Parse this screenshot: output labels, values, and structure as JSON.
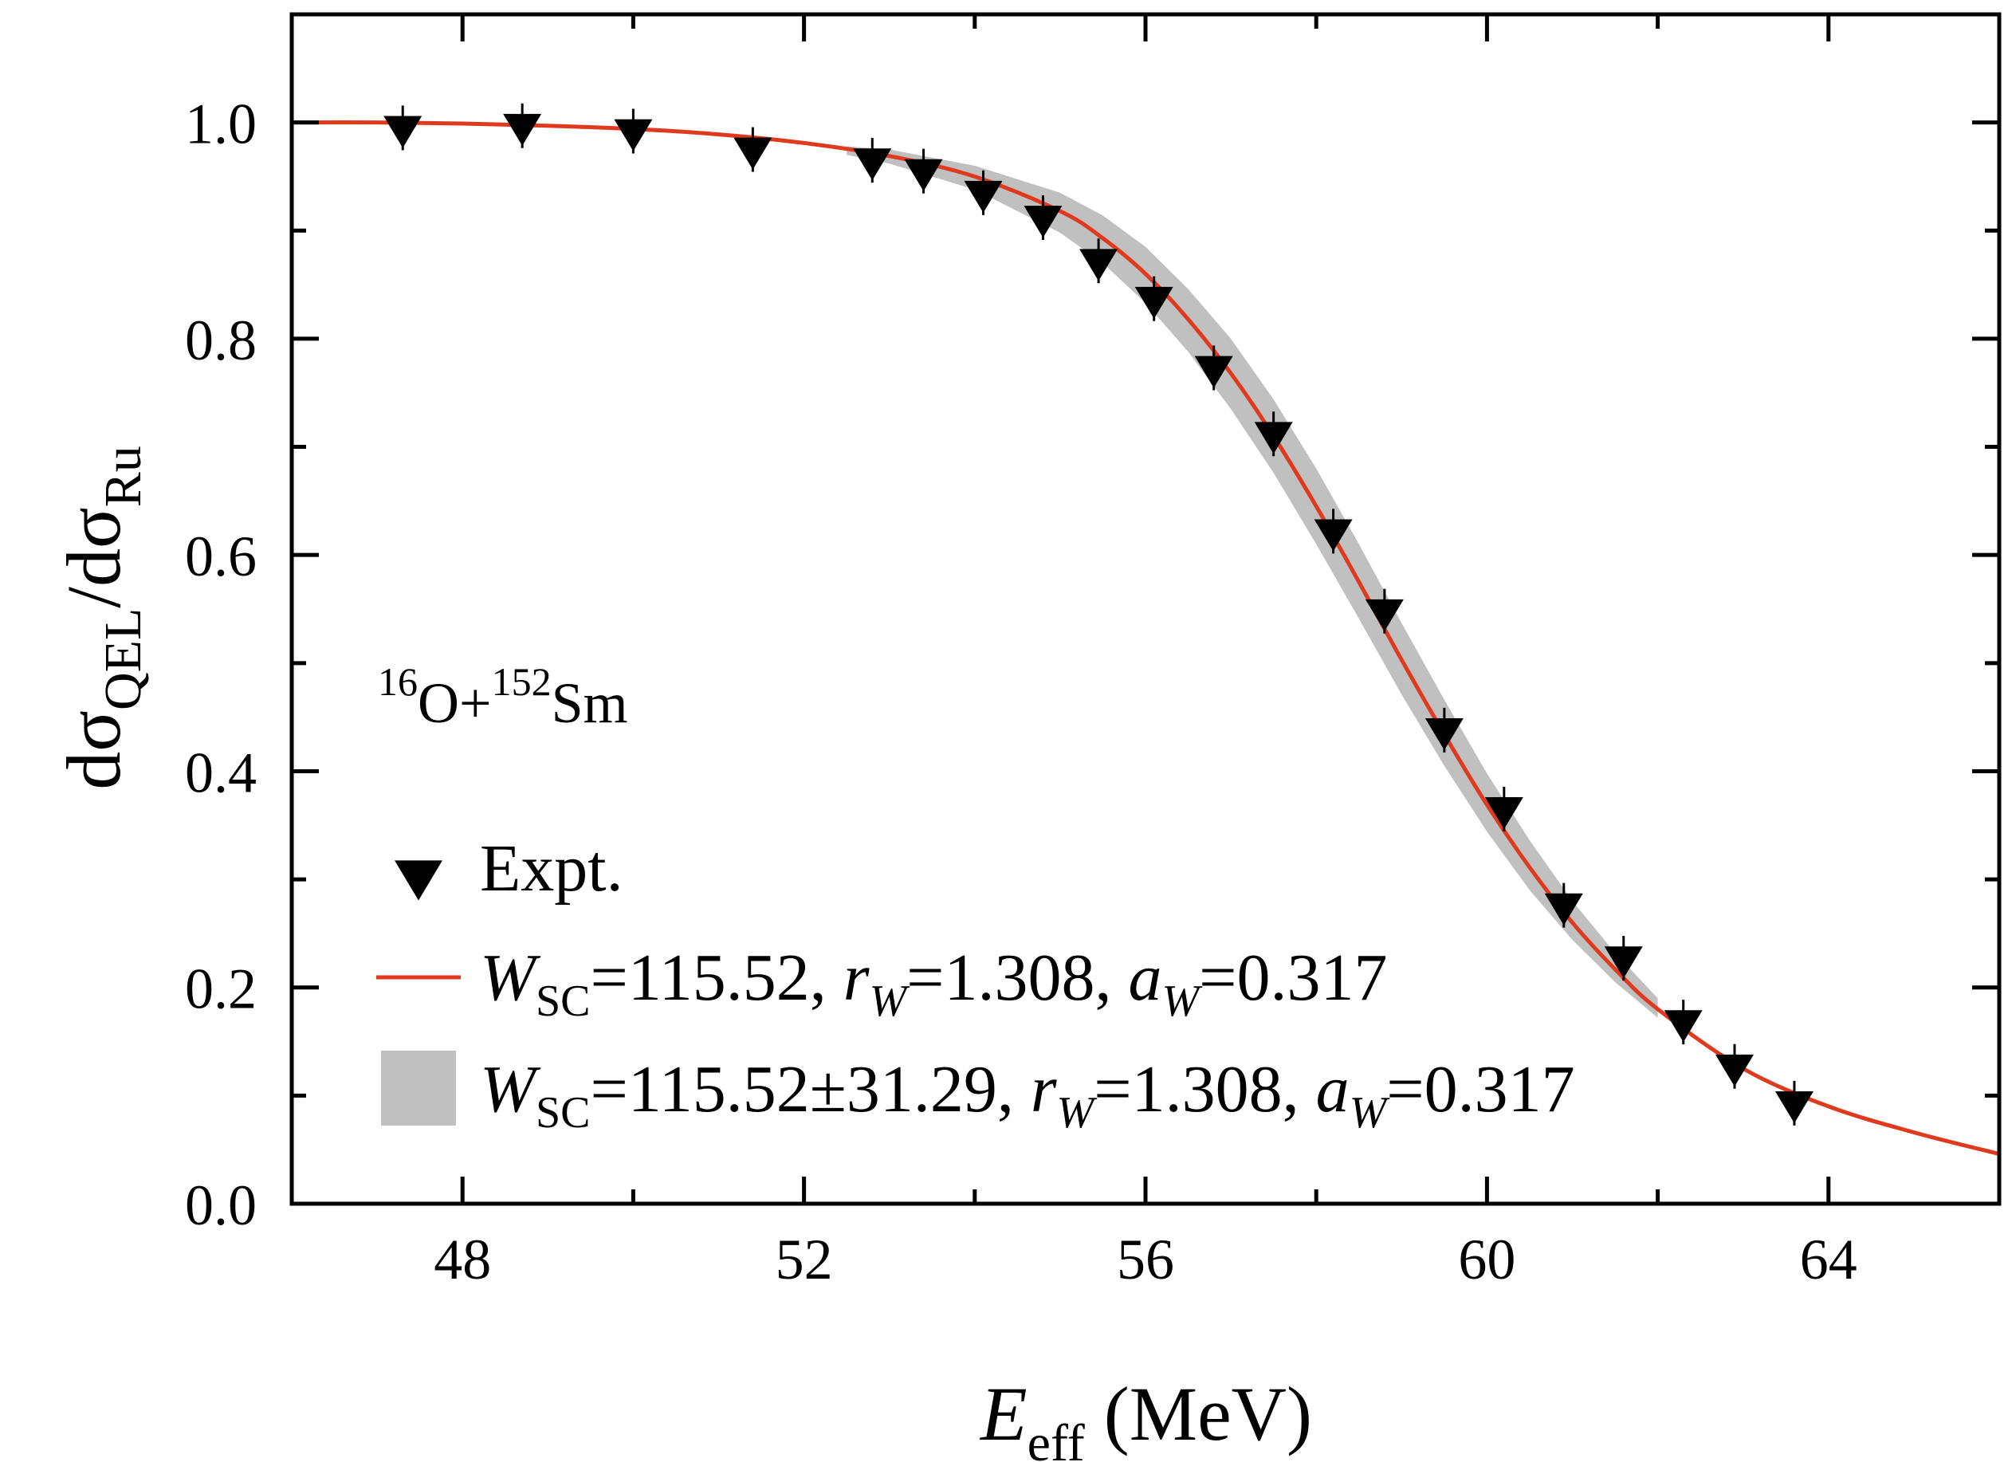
{
  "chart_data": {
    "type": "line",
    "title": "",
    "annotation": {
      "proj_mass": "16",
      "proj_sym": "O+",
      "targ_mass": "152",
      "targ_sym": "Sm"
    },
    "xlabel": {
      "main": "E",
      "sub": "eff",
      "unit": " (MeV)"
    },
    "ylabel": {
      "p1": "dσ",
      "s1": "QEL",
      "p2": "/dσ",
      "s2": "Ru"
    },
    "xlim": [
      46,
      66
    ],
    "ylim": [
      0.0,
      1.1
    ],
    "xticks": [
      48,
      52,
      56,
      60,
      64
    ],
    "xtick_labels": [
      "48",
      "52",
      "56",
      "60",
      "64"
    ],
    "yticks": [
      0.0,
      0.2,
      0.4,
      0.6,
      0.8,
      1.0
    ],
    "ytick_labels": [
      "0.0",
      "0.2",
      "0.4",
      "0.6",
      "0.8",
      "1.0"
    ],
    "colors": {
      "fit_line": "#e03a1e",
      "band": "#c0c0c0",
      "markers": "#000000",
      "axes": "#000000"
    },
    "legend": {
      "position": "bottom-left",
      "expt_label": "Expt.",
      "fit": {
        "W": "W",
        "Wsub": "SC",
        "Wval": "=115.52, ",
        "r": "r",
        "rsub": "W",
        "rval": "=1.308, ",
        "a": "a",
        "asub": "W",
        "aval": "=0.317"
      },
      "band": {
        "W": "W",
        "Wsub": "SC",
        "Wval": "=115.52±31.29, ",
        "r": "r",
        "rsub": "W",
        "rval": "=1.308, ",
        "a": "a",
        "asub": "W",
        "aval": "=0.317"
      }
    },
    "series": [
      {
        "name": "Expt.",
        "kind": "scatter",
        "marker": "triangle-down",
        "x": [
          47.3,
          48.7,
          50.0,
          51.4,
          52.8,
          53.4,
          54.1,
          54.8,
          55.45,
          56.1,
          56.8,
          57.5,
          58.2,
          58.8,
          59.5,
          60.2,
          60.9,
          61.6,
          62.3,
          62.9,
          63.6
        ],
        "y": [
          0.995,
          0.997,
          0.992,
          0.975,
          0.965,
          0.955,
          0.935,
          0.912,
          0.872,
          0.837,
          0.773,
          0.712,
          0.622,
          0.548,
          0.438,
          0.365,
          0.276,
          0.227,
          0.168,
          0.127,
          0.093
        ]
      },
      {
        "name": "W_SC=115.52, r_W=1.308, a_W=0.317",
        "kind": "line",
        "x": [
          46,
          47,
          48,
          49,
          50,
          51,
          52,
          53,
          54,
          55,
          55.5,
          56,
          56.5,
          57,
          57.5,
          58,
          58.5,
          59,
          59.5,
          60,
          60.5,
          61,
          61.5,
          62,
          63,
          64,
          65,
          66
        ],
        "y": [
          1.0,
          1.0,
          0.999,
          0.997,
          0.994,
          0.989,
          0.981,
          0.969,
          0.95,
          0.918,
          0.893,
          0.86,
          0.818,
          0.768,
          0.71,
          0.645,
          0.575,
          0.503,
          0.434,
          0.369,
          0.311,
          0.26,
          0.217,
          0.18,
          0.125,
          0.09,
          0.066,
          0.046
        ]
      },
      {
        "name": "W_SC=115.52±31.29, r_W=1.308, a_W=0.317",
        "kind": "band",
        "x": [
          52.5,
          53,
          54,
          55,
          55.5,
          56,
          56.5,
          57,
          57.5,
          58,
          58.5,
          59,
          59.5,
          60,
          60.5,
          61,
          61.5,
          62
        ],
        "y_lower": [
          0.97,
          0.962,
          0.938,
          0.898,
          0.87,
          0.833,
          0.788,
          0.735,
          0.676,
          0.61,
          0.541,
          0.471,
          0.405,
          0.344,
          0.29,
          0.244,
          0.205,
          0.172
        ],
        "y_upper": [
          0.978,
          0.975,
          0.96,
          0.935,
          0.914,
          0.885,
          0.846,
          0.8,
          0.744,
          0.68,
          0.61,
          0.537,
          0.466,
          0.398,
          0.336,
          0.28,
          0.232,
          0.19
        ]
      }
    ]
  }
}
